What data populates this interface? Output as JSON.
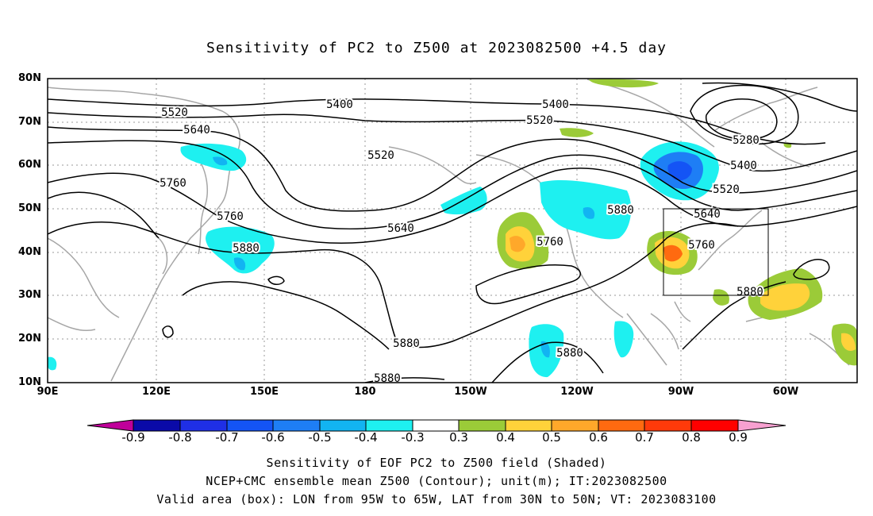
{
  "title": "Sensitivity of PC2 to Z500 at 2023082500 +4.5 day",
  "map": {
    "lat_labels": [
      "80N",
      "70N",
      "60N",
      "50N",
      "40N",
      "30N",
      "20N",
      "10N"
    ],
    "lon_labels": [
      "90E",
      "120E",
      "150E",
      "180",
      "150W",
      "120W",
      "90W",
      "60W"
    ],
    "contour_labels": [
      "5400",
      "5400",
      "5520",
      "5640",
      "5520",
      "5400",
      "5280",
      "5520",
      "5760",
      "5760",
      "5640",
      "5520",
      "5880",
      "5640",
      "5880",
      "5760",
      "5760",
      "5880",
      "5880",
      "5880",
      "5880"
    ],
    "valid_box": {
      "lon_min": "95W",
      "lon_max": "65W",
      "lat_min": "30N",
      "lat_max": "50N"
    }
  },
  "colorbar": {
    "labels": [
      "-0.9",
      "-0.8",
      "-0.7",
      "-0.6",
      "-0.5",
      "-0.4",
      "-0.3",
      "0.3",
      "0.4",
      "0.5",
      "0.6",
      "0.7",
      "0.8",
      "0.9"
    ],
    "colors": [
      "#c0009a",
      "#0a0aa8",
      "#1f2fe6",
      "#1454f5",
      "#1e7ef5",
      "#12b4f2",
      "#1ef0f0",
      "#ffffff",
      "#9bcb38",
      "#ffd23a",
      "#ffa82a",
      "#ff6a10",
      "#ff3a0a",
      "#ff0000",
      "#f7a0d0"
    ]
  },
  "captions": [
    "Sensitivity of EOF PC2 to Z500 field (Shaded)",
    "NCEP+CMC ensemble mean Z500 (Contour); unit(m); IT:2023082500",
    "Valid area (box): LON from 95W to 65W, LAT from 30N to 50N; VT: 2023083100"
  ]
}
